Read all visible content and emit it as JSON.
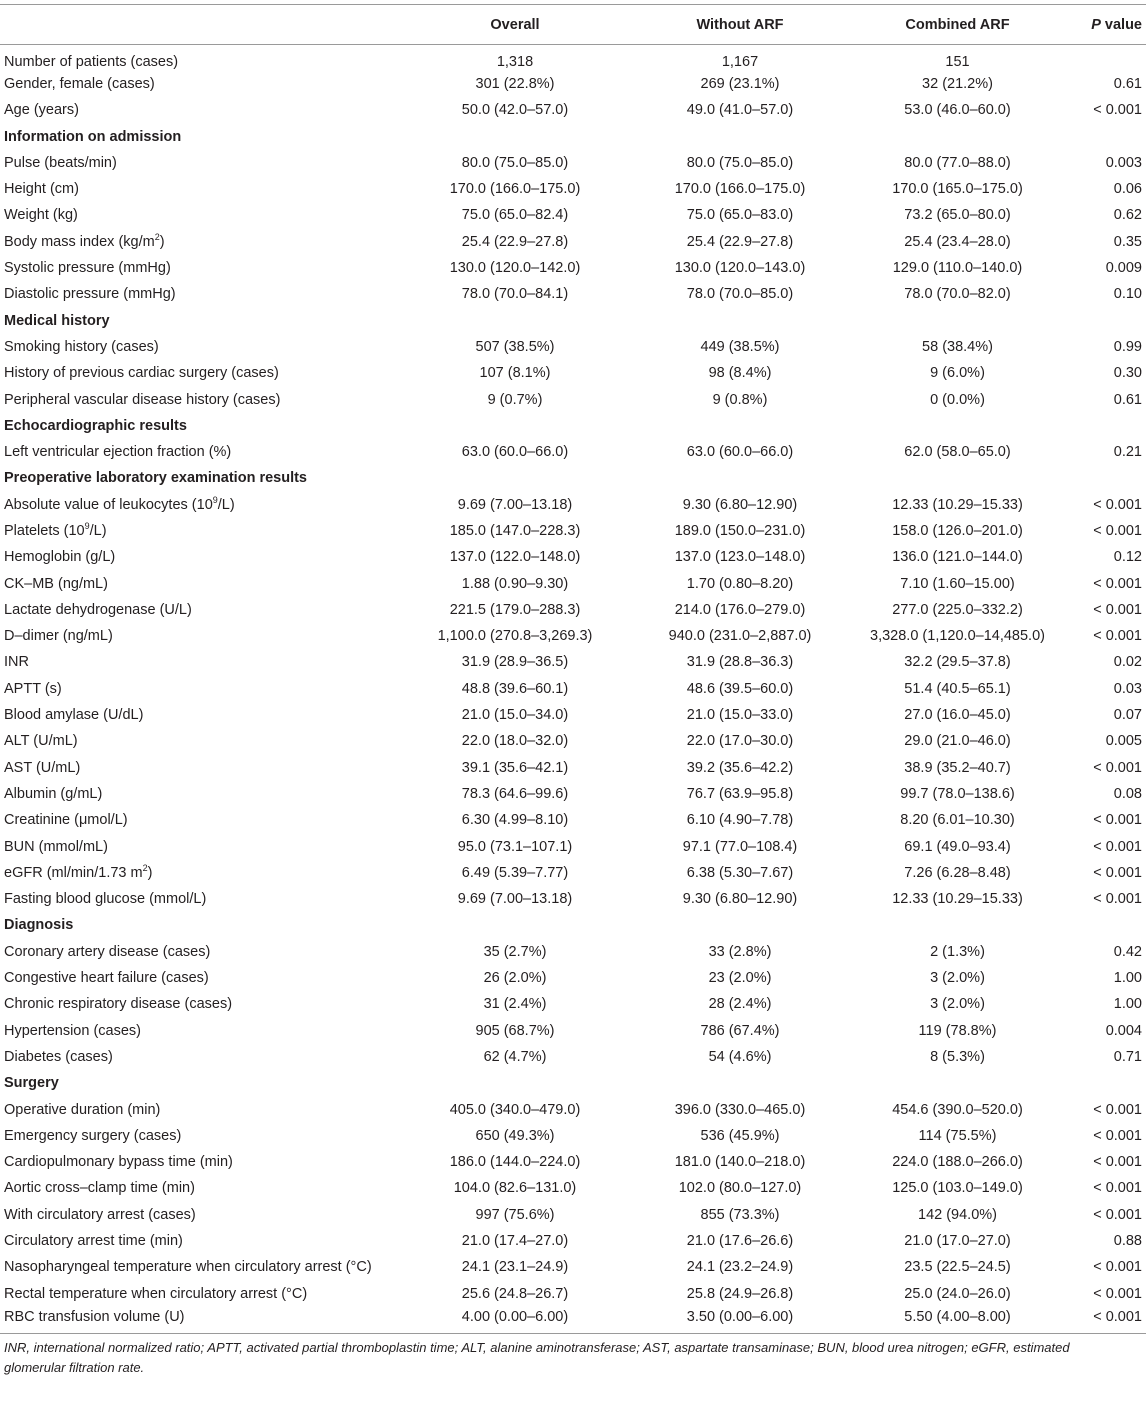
{
  "header": {
    "label": "",
    "overall": "Overall",
    "without_arf": "Without ARF",
    "combined_arf": "Combined ARF",
    "p_value_italic": "P",
    "p_value_rest": " value"
  },
  "rows": [
    {
      "type": "data",
      "label": "Number of patients (cases)",
      "overall": "1,318",
      "without": "1,167",
      "combined": "151",
      "p": ""
    },
    {
      "type": "data",
      "label": "Gender, female (cases)",
      "overall": "301 (22.8%)",
      "without": "269 (23.1%)",
      "combined": "32 (21.2%)",
      "p": "0.61"
    },
    {
      "type": "data",
      "label": "Age (years)",
      "overall": "50.0 (42.0–57.0)",
      "without": "49.0 (41.0–57.0)",
      "combined": "53.0 (46.0–60.0)",
      "p": "< 0.001"
    },
    {
      "type": "section",
      "label": "Information on admission"
    },
    {
      "type": "data",
      "label": "Pulse (beats/min)",
      "overall": "80.0 (75.0–85.0)",
      "without": "80.0 (75.0–85.0)",
      "combined": "80.0 (77.0–88.0)",
      "p": "0.003"
    },
    {
      "type": "data",
      "label": "Height (cm)",
      "overall": "170.0 (166.0–175.0)",
      "without": "170.0 (166.0–175.0)",
      "combined": "170.0 (165.0–175.0)",
      "p": "0.06"
    },
    {
      "type": "data",
      "label": "Weight (kg)",
      "overall": "75.0 (65.0–82.4)",
      "without": "75.0 (65.0–83.0)",
      "combined": "73.2 (65.0–80.0)",
      "p": "0.62"
    },
    {
      "type": "data",
      "label": "Body mass index (kg/m",
      "sup": "2",
      "label_after": ")",
      "overall": "25.4 (22.9–27.8)",
      "without": "25.4 (22.9–27.8)",
      "combined": "25.4 (23.4–28.0)",
      "p": "0.35"
    },
    {
      "type": "data",
      "label": "Systolic pressure (mmHg)",
      "overall": "130.0 (120.0–142.0)",
      "without": "130.0 (120.0–143.0)",
      "combined": "129.0 (110.0–140.0)",
      "p": "0.009"
    },
    {
      "type": "data",
      "label": "Diastolic pressure (mmHg)",
      "overall": "78.0 (70.0–84.1)",
      "without": "78.0 (70.0–85.0)",
      "combined": "78.0 (70.0–82.0)",
      "p": "0.10"
    },
    {
      "type": "section",
      "label": "Medical history"
    },
    {
      "type": "data",
      "label": "Smoking history (cases)",
      "overall": "507 (38.5%)",
      "without": "449 (38.5%)",
      "combined": "58 (38.4%)",
      "p": "0.99"
    },
    {
      "type": "data",
      "label": "History of previous cardiac surgery (cases)",
      "overall": "107 (8.1%)",
      "without": "98 (8.4%)",
      "combined": "9 (6.0%)",
      "p": "0.30"
    },
    {
      "type": "data",
      "label": "Peripheral vascular disease history (cases)",
      "overall": "9 (0.7%)",
      "without": "9 (0.8%)",
      "combined": "0 (0.0%)",
      "p": "0.61"
    },
    {
      "type": "section",
      "label": "Echocardiographic results"
    },
    {
      "type": "data",
      "label": "Left ventricular ejection fraction (%)",
      "overall": "63.0 (60.0–66.0)",
      "without": "63.0 (60.0–66.0)",
      "combined": "62.0 (58.0–65.0)",
      "p": "0.21"
    },
    {
      "type": "section",
      "label": "Preoperative laboratory examination results"
    },
    {
      "type": "data",
      "label": "Absolute value of leukocytes (10",
      "sup": "9",
      "label_after": "/L)",
      "overall": "9.69 (7.00–13.18)",
      "without": "9.30 (6.80–12.90)",
      "combined": "12.33 (10.29–15.33)",
      "p": "< 0.001"
    },
    {
      "type": "data",
      "label": "Platelets (10",
      "sup": "9",
      "label_after": "/L)",
      "overall": "185.0 (147.0–228.3)",
      "without": "189.0 (150.0–231.0)",
      "combined": "158.0 (126.0–201.0)",
      "p": "< 0.001"
    },
    {
      "type": "data",
      "label": "Hemoglobin (g/L)",
      "overall": "137.0 (122.0–148.0)",
      "without": "137.0 (123.0–148.0)",
      "combined": "136.0 (121.0–144.0)",
      "p": "0.12"
    },
    {
      "type": "data",
      "label": "CK–MB (ng/mL)",
      "overall": "1.88 (0.90–9.30)",
      "without": "1.70 (0.80–8.20)",
      "combined": "7.10 (1.60–15.00)",
      "p": "< 0.001"
    },
    {
      "type": "data",
      "label": "Lactate dehydrogenase (U/L)",
      "overall": "221.5 (179.0–288.3)",
      "without": "214.0 (176.0–279.0)",
      "combined": "277.0 (225.0–332.2)",
      "p": "< 0.001"
    },
    {
      "type": "data",
      "label": "D–dimer (ng/mL)",
      "overall": "1,100.0 (270.8–3,269.3)",
      "without": "940.0 (231.0–2,887.0)",
      "combined": "3,328.0 (1,120.0–14,485.0)",
      "p": "< 0.001"
    },
    {
      "type": "data",
      "label": "INR",
      "overall": "31.9 (28.9–36.5)",
      "without": "31.9 (28.8–36.3)",
      "combined": "32.2 (29.5–37.8)",
      "p": "0.02"
    },
    {
      "type": "data",
      "label": "APTT (s)",
      "overall": "48.8 (39.6–60.1)",
      "without": "48.6 (39.5–60.0)",
      "combined": "51.4 (40.5–65.1)",
      "p": "0.03"
    },
    {
      "type": "data",
      "label": "Blood amylase (U/dL)",
      "overall": "21.0 (15.0–34.0)",
      "without": "21.0 (15.0–33.0)",
      "combined": "27.0 (16.0–45.0)",
      "p": "0.07"
    },
    {
      "type": "data",
      "label": "ALT (U/mL)",
      "overall": "22.0 (18.0–32.0)",
      "without": "22.0 (17.0–30.0)",
      "combined": "29.0 (21.0–46.0)",
      "p": "0.005"
    },
    {
      "type": "data",
      "label": "AST (U/mL)",
      "overall": "39.1 (35.6–42.1)",
      "without": "39.2 (35.6–42.2)",
      "combined": "38.9 (35.2–40.7)",
      "p": "< 0.001"
    },
    {
      "type": "data",
      "label": "Albumin (g/mL)",
      "overall": "78.3 (64.6–99.6)",
      "without": "76.7 (63.9–95.8)",
      "combined": "99.7 (78.0–138.6)",
      "p": "0.08"
    },
    {
      "type": "data",
      "label": "Creatinine (μmol/L)",
      "overall": "6.30 (4.99–8.10)",
      "without": "6.10 (4.90–7.78)",
      "combined": "8.20 (6.01–10.30)",
      "p": "< 0.001"
    },
    {
      "type": "data",
      "label": "BUN (mmol/mL)",
      "overall": "95.0 (73.1–107.1)",
      "without": "97.1 (77.0–108.4)",
      "combined": "69.1 (49.0–93.4)",
      "p": "< 0.001"
    },
    {
      "type": "data",
      "label": "eGFR (ml/min/1.73 m",
      "sup": "2",
      "label_after": ")",
      "overall": "6.49 (5.39–7.77)",
      "without": "6.38 (5.30–7.67)",
      "combined": "7.26 (6.28–8.48)",
      "p": "< 0.001"
    },
    {
      "type": "data",
      "label": "Fasting blood glucose (mmol/L)",
      "overall": "9.69 (7.00–13.18)",
      "without": "9.30 (6.80–12.90)",
      "combined": "12.33 (10.29–15.33)",
      "p": "< 0.001"
    },
    {
      "type": "section",
      "label": "Diagnosis"
    },
    {
      "type": "data",
      "label": "Coronary artery disease (cases)",
      "overall": "35 (2.7%)",
      "without": "33 (2.8%)",
      "combined": "2 (1.3%)",
      "p": "0.42"
    },
    {
      "type": "data",
      "label": "Congestive heart failure (cases)",
      "overall": "26 (2.0%)",
      "without": "23 (2.0%)",
      "combined": "3 (2.0%)",
      "p": "1.00"
    },
    {
      "type": "data",
      "label": "Chronic respiratory disease (cases)",
      "overall": "31 (2.4%)",
      "without": "28 (2.4%)",
      "combined": "3 (2.0%)",
      "p": "1.00"
    },
    {
      "type": "data",
      "label": "Hypertension (cases)",
      "overall": "905 (68.7%)",
      "without": "786 (67.4%)",
      "combined": "119 (78.8%)",
      "p": "0.004"
    },
    {
      "type": "data",
      "label": "Diabetes (cases)",
      "overall": "62 (4.7%)",
      "without": "54 (4.6%)",
      "combined": "8 (5.3%)",
      "p": "0.71"
    },
    {
      "type": "section",
      "label": "Surgery"
    },
    {
      "type": "data",
      "label": "Operative duration (min)",
      "overall": "405.0 (340.0–479.0)",
      "without": "396.0 (330.0–465.0)",
      "combined": "454.6 (390.0–520.0)",
      "p": "< 0.001"
    },
    {
      "type": "data",
      "label": "Emergency surgery (cases)",
      "overall": "650 (49.3%)",
      "without": "536 (45.9%)",
      "combined": "114 (75.5%)",
      "p": "< 0.001"
    },
    {
      "type": "data",
      "label": "Cardiopulmonary bypass time (min)",
      "overall": "186.0 (144.0–224.0)",
      "without": "181.0 (140.0–218.0)",
      "combined": "224.0 (188.0–266.0)",
      "p": "< 0.001"
    },
    {
      "type": "data",
      "label": "Aortic cross–clamp time (min)",
      "overall": "104.0 (82.6–131.0)",
      "without": "102.0 (80.0–127.0)",
      "combined": "125.0 (103.0–149.0)",
      "p": "< 0.001"
    },
    {
      "type": "data",
      "label": "With circulatory arrest (cases)",
      "overall": "997 (75.6%)",
      "without": "855 (73.3%)",
      "combined": "142 (94.0%)",
      "p": "< 0.001"
    },
    {
      "type": "data",
      "label": "Circulatory arrest time (min)",
      "overall": "21.0 (17.4–27.0)",
      "without": "21.0 (17.6–26.6)",
      "combined": "21.0 (17.0–27.0)",
      "p": "0.88"
    },
    {
      "type": "data",
      "label": "Nasopharyngeal temperature when circulatory arrest (°C)",
      "overall": "24.1 (23.1–24.9)",
      "without": "24.1 (23.2–24.9)",
      "combined": "23.5 (22.5–24.5)",
      "p": "< 0.001"
    },
    {
      "type": "data",
      "label": "Rectal temperature when circulatory arrest (°C)",
      "overall": "25.6 (24.8–26.7)",
      "without": "25.8 (24.9–26.8)",
      "combined": "25.0 (24.0–26.0)",
      "p": "< 0.001"
    },
    {
      "type": "data",
      "label": "RBC transfusion volume (U)",
      "overall": "4.00 (0.00–6.00)",
      "without": "3.50 (0.00–6.00)",
      "combined": "5.50 (4.00–8.00)",
      "p": "< 0.001"
    }
  ],
  "footnote": "INR, international normalized ratio; APTT, activated partial thromboplastin time; ALT, alanine aminotransferase; AST, aspartate transaminase; BUN, blood urea nitrogen; eGFR, estimated glomerular filtration rate."
}
